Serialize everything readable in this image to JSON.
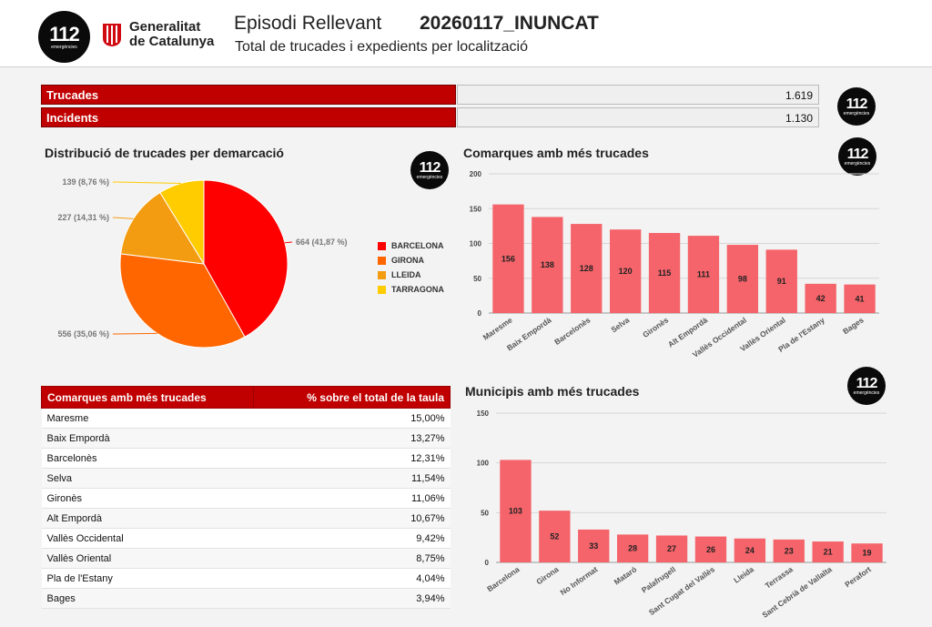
{
  "header": {
    "logo_number": "112",
    "logo_sub": "emergències",
    "org_line1": "Generalitat",
    "org_line2": "de Catalunya",
    "title": "Episodi Rellevant",
    "code": "20260117_INUNCAT",
    "subtitle": "Total de trucades i expedients per localització"
  },
  "kpis": [
    {
      "label": "Trucades",
      "value": "1.619"
    },
    {
      "label": "Incidents",
      "value": "1.130"
    }
  ],
  "colors": {
    "accent": "#c00000",
    "bar": "#f4646a"
  },
  "chart_data": [
    {
      "type": "pie",
      "title": "Distribució de trucades per demarcació",
      "categories": [
        "BARCELONA",
        "GIRONA",
        "LLEIDA",
        "TARRAGONA"
      ],
      "values": [
        664,
        556,
        227,
        139
      ],
      "labels": [
        "664 (41,87 %)",
        "556 (35,06 %)",
        "227 (14,31 %)",
        "139 (8,76 %)"
      ],
      "colors": [
        "#ff0000",
        "#ff6600",
        "#f39c12",
        "#ffcc00"
      ],
      "legend": "right"
    },
    {
      "type": "bar",
      "title": "Comarques amb més trucades",
      "categories": [
        "Maresme",
        "Baix Empordà",
        "Barcelonès",
        "Selva",
        "Gironès",
        "Alt Empordà",
        "Vallès Occidental",
        "Vallès Oriental",
        "Pla de l'Estany",
        "Bages"
      ],
      "values": [
        156,
        138,
        128,
        120,
        115,
        111,
        98,
        91,
        42,
        41
      ],
      "ylim": [
        0,
        200
      ],
      "yticks": [
        0,
        50,
        100,
        150,
        200
      ],
      "grid": true
    },
    {
      "type": "bar",
      "title": "Municipis amb més trucades",
      "categories": [
        "Barcelona",
        "Girona",
        "No Informat",
        "Mataró",
        "Palafrugell",
        "Sant Cugat del Vallès",
        "Lleida",
        "Terrassa",
        "Sant Cebrià de Vallalta",
        "Perafort"
      ],
      "values": [
        103,
        52,
        33,
        28,
        27,
        26,
        24,
        23,
        21,
        19
      ],
      "ylim": [
        0,
        150
      ],
      "yticks": [
        0,
        50,
        100,
        150
      ],
      "grid": true
    }
  ],
  "table": {
    "headers": [
      "Comarques amb més trucades",
      "% sobre el total de la taula"
    ],
    "rows": [
      [
        "Maresme",
        "15,00%"
      ],
      [
        "Baix Empordà",
        "13,27%"
      ],
      [
        "Barcelonès",
        "12,31%"
      ],
      [
        "Selva",
        "11,54%"
      ],
      [
        "Gironès",
        "11,06%"
      ],
      [
        "Alt Empordà",
        "10,67%"
      ],
      [
        "Vallès Occidental",
        "9,42%"
      ],
      [
        "Vallès Oriental",
        "8,75%"
      ],
      [
        "Pla de l'Estany",
        "4,04%"
      ],
      [
        "Bages",
        "3,94%"
      ]
    ]
  }
}
